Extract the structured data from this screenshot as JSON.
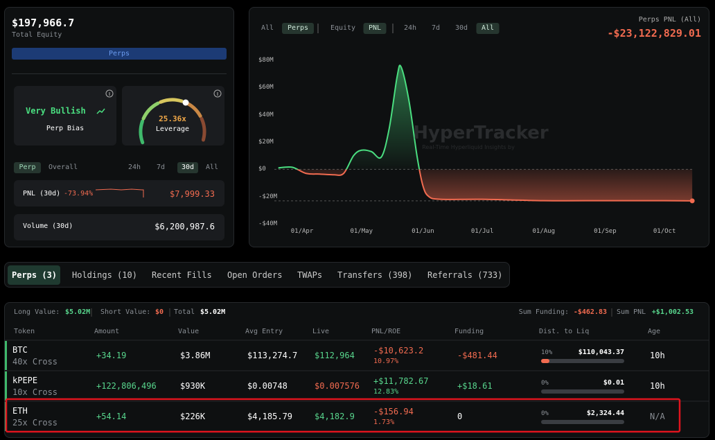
{
  "account": {
    "equity": "$197,966.7",
    "equity_label": "Total Equity",
    "mode": "Perps"
  },
  "bias": {
    "label": "Very Bullish",
    "caption": "Perp Bias"
  },
  "leverage": {
    "value": "25.36x",
    "caption": "Leverage"
  },
  "period_tabs": {
    "scope": [
      "Perp",
      "Overall"
    ],
    "scope_active": 0,
    "ranges": [
      "24h",
      "7d",
      "30d",
      "All"
    ],
    "ranges_active": 2
  },
  "pnl_row": {
    "label": "PNL (30d)",
    "pct": "-73.94%",
    "value": "$7,999.33"
  },
  "volume_row": {
    "label": "Volume (30d)",
    "value": "$6,200,987.6"
  },
  "chart_tabs": {
    "kind": [
      "All",
      "Perps"
    ],
    "kind_active": 1,
    "metric": [
      "Equity",
      "PNL"
    ],
    "metric_active": 1,
    "ranges": [
      "24h",
      "7d",
      "30d",
      "All"
    ],
    "ranges_active": 3
  },
  "chart_header": {
    "title": "Perps PNL (All)",
    "value": "-$23,122,829.01"
  },
  "watermark": {
    "title": "HyperTracker",
    "subtitle": "Real-Time Hyperliquid Insights by"
  },
  "chart_data": {
    "type": "area",
    "x": [
      "20/Mar",
      "27/Mar",
      "03/Apr",
      "10/Apr",
      "17/Apr",
      "22/Apr",
      "27/Apr",
      "01/May",
      "06/May",
      "11/May",
      "15/May",
      "19/May",
      "21/May",
      "25/May",
      "29/May",
      "01/Jun",
      "04/Jun",
      "10/Jun",
      "01/Jul",
      "01/Aug",
      "01/Sep",
      "01/Oct",
      "15/Oct"
    ],
    "values": [
      1,
      1.5,
      -3,
      -3.5,
      -4,
      -3,
      10,
      14,
      13,
      9,
      30,
      68,
      75,
      50,
      10,
      -12,
      -20,
      -22,
      -22,
      -23,
      -23,
      -23,
      -23.12
    ],
    "colors": {
      "positive": "#4ade80",
      "negative": "#f26b50"
    },
    "xlim": [
      "18/Mar",
      "16/Oct"
    ],
    "xticks": [
      "01/Apr",
      "01/May",
      "01/Jun",
      "01/Jul",
      "01/Aug",
      "01/Sep",
      "01/Oct"
    ],
    "ylim": [
      -42,
      84
    ],
    "yticks": [
      {
        "value": 80,
        "label": "$80M"
      },
      {
        "value": 60,
        "label": "$60M"
      },
      {
        "value": 40,
        "label": "$40M"
      },
      {
        "value": 20,
        "label": "$20M"
      },
      {
        "value": 0,
        "label": "$0"
      },
      {
        "value": -20,
        "label": "-$20M"
      },
      {
        "value": -40,
        "label": "-$40M"
      }
    ]
  },
  "tabs": {
    "items": [
      "Perps (3)",
      "Holdings (10)",
      "Recent Fills",
      "Open Orders",
      "TWAPs",
      "Transfers (398)",
      "Referrals (733)"
    ],
    "active": 0
  },
  "summary": {
    "long_label": "Long Value:",
    "long": "$5.02M",
    "short_label": "Short Value:",
    "short": "$0",
    "total_label": "Total",
    "total": "$5.02M",
    "funding_label": "Sum Funding:",
    "funding": "-$462.83",
    "pnl_label": "Sum PNL",
    "pnl": "+$1,002.53"
  },
  "table": {
    "headers": [
      "Token",
      "Amount",
      "Value",
      "Avg Entry",
      "Live",
      "PNL/ROE",
      "Funding",
      "Dist. to Liq",
      "Age"
    ],
    "rows": [
      {
        "token": "BTC",
        "margin": "40x Cross",
        "amount": "+34.19",
        "value": "$3.86M",
        "avg_entry": "$113,274.7",
        "live": "$112,964",
        "live_color": "#58d68d",
        "pnl": "-$10,623.2",
        "roe": "10.97%",
        "funding": "-$481.44",
        "dist": {
          "value": 10,
          "label": "10%"
        },
        "liq_price": "$110,043.37",
        "age": "10h",
        "age_color": "#ffffff",
        "highlight": false
      },
      {
        "token": "kPEPE",
        "margin": "10x Cross",
        "amount": "+122,806,496",
        "value": "$930K",
        "avg_entry": "$0.00748",
        "live": "$0.007576",
        "live_color": "#f26b50",
        "pnl": "+$11,782.67",
        "roe": "12.83%",
        "funding": "+$18.61",
        "dist": {
          "value": 0,
          "label": "0%"
        },
        "liq_price": "$0.01",
        "age": "10h",
        "age_color": "#ffffff",
        "highlight": false
      },
      {
        "token": "ETH",
        "margin": "25x Cross",
        "amount": "+54.14",
        "value": "$226K",
        "avg_entry": "$4,185.79",
        "live": "$4,182.9",
        "live_color": "#58d68d",
        "pnl": "-$156.94",
        "roe": "1.73%",
        "funding": "0",
        "dist": {
          "value": 0,
          "label": "0%"
        },
        "liq_price": "$2,324.44",
        "age": "N/A",
        "age_color": "#8a8f95",
        "highlight": true
      }
    ]
  }
}
